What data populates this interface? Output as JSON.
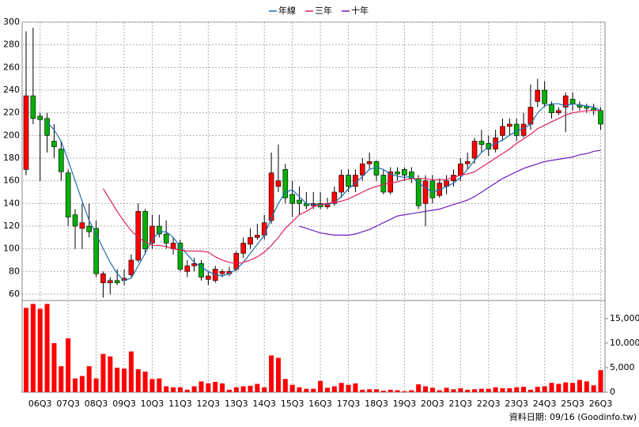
{
  "chart_data": {
    "type": "candlestick",
    "categories": [
      null,
      null,
      "06Q3",
      null,
      null,
      null,
      "07Q3",
      null,
      null,
      null,
      "08Q3",
      null,
      null,
      null,
      "09Q3",
      null,
      null,
      null,
      "10Q3",
      null,
      null,
      null,
      "11Q3",
      null,
      null,
      null,
      "12Q3",
      null,
      null,
      null,
      "13Q3",
      null,
      null,
      null,
      "14Q3",
      null,
      null,
      null,
      "15Q3",
      null,
      null,
      null,
      "16Q3",
      null,
      null,
      null,
      "17Q3",
      null,
      null,
      null,
      "18Q3",
      null,
      null,
      null,
      "19Q3",
      null,
      null,
      null,
      "20Q3",
      null,
      null,
      null,
      "21Q3",
      null,
      null,
      null,
      "22Q3",
      null,
      null,
      null,
      "23Q3",
      null,
      null,
      null,
      "24Q3",
      null,
      null,
      null,
      "25Q3",
      null,
      null,
      null,
      "26Q3"
    ],
    "open": [
      170,
      235,
      217,
      215,
      195,
      188,
      167,
      130,
      118,
      120,
      118,
      70,
      70,
      72,
      72,
      77,
      90,
      133,
      105,
      120,
      113,
      100,
      105,
      80,
      85,
      87,
      73,
      72,
      78,
      78,
      82,
      96,
      104,
      110,
      112,
      125,
      155,
      170,
      148,
      143,
      140,
      138,
      140,
      137,
      140,
      150,
      165,
      155,
      165,
      175,
      177,
      165,
      150,
      168,
      170,
      168,
      162,
      140,
      160,
      147,
      155,
      160,
      165,
      175,
      180,
      195,
      193,
      188,
      200,
      208,
      210,
      200,
      210,
      230,
      240,
      227,
      220,
      225,
      232,
      227,
      226,
      224,
      222
    ],
    "high": [
      292,
      295,
      220,
      220,
      210,
      195,
      170,
      135,
      140,
      140,
      125,
      80,
      75,
      82,
      82,
      95,
      140,
      135,
      130,
      130,
      125,
      110,
      108,
      90,
      92,
      90,
      80,
      85,
      82,
      84,
      98,
      110,
      118,
      122,
      130,
      185,
      192,
      175,
      160,
      155,
      150,
      150,
      150,
      145,
      155,
      170,
      170,
      170,
      180,
      185,
      178,
      170,
      172,
      172,
      172,
      172,
      165,
      165,
      165,
      162,
      165,
      170,
      180,
      185,
      198,
      205,
      200,
      205,
      215,
      215,
      215,
      220,
      245,
      250,
      248,
      230,
      225,
      238,
      238,
      230,
      228,
      228,
      225
    ],
    "low": [
      165,
      210,
      160,
      185,
      180,
      160,
      120,
      100,
      100,
      110,
      75,
      57,
      60,
      68,
      68,
      75,
      88,
      95,
      100,
      110,
      100,
      95,
      80,
      75,
      80,
      72,
      68,
      70,
      75,
      76,
      80,
      92,
      100,
      108,
      108,
      122,
      150,
      140,
      128,
      130,
      135,
      135,
      135,
      135,
      138,
      145,
      150,
      150,
      160,
      170,
      160,
      148,
      148,
      160,
      160,
      158,
      135,
      120,
      140,
      145,
      148,
      155,
      160,
      170,
      175,
      185,
      182,
      185,
      195,
      200,
      195,
      198,
      205,
      225,
      225,
      215,
      218,
      203,
      222,
      222,
      220,
      218,
      205
    ],
    "close": [
      235,
      215,
      214,
      200,
      190,
      168,
      128,
      120,
      123,
      115,
      78,
      78,
      72,
      70,
      74,
      90,
      133,
      100,
      120,
      113,
      105,
      105,
      82,
      85,
      87,
      75,
      76,
      82,
      80,
      80,
      96,
      105,
      110,
      112,
      123,
      167,
      160,
      145,
      140,
      140,
      138,
      140,
      137,
      140,
      150,
      165,
      155,
      165,
      175,
      177,
      165,
      150,
      168,
      166,
      165,
      162,
      138,
      160,
      145,
      158,
      160,
      165,
      175,
      177,
      195,
      192,
      188,
      198,
      208,
      210,
      200,
      210,
      225,
      240,
      228,
      220,
      222,
      235,
      228,
      225,
      224,
      222,
      210
    ],
    "up_color": "#ff0000",
    "down_color": "#00b000",
    "ylim": [
      54.4,
      300
    ],
    "yticks": [
      60,
      80,
      100,
      120,
      140,
      160,
      180,
      200,
      220,
      240,
      260,
      280,
      300
    ],
    "grid": true,
    "series": [
      {
        "name": "年線",
        "color": "#1f6fb5",
        "values": [
          null,
          null,
          null,
          212,
          205,
          195,
          178,
          160,
          142,
          125,
          113,
          100,
          88,
          78,
          72,
          74,
          85,
          96,
          108,
          115,
          115,
          110,
          102,
          95,
          88,
          84,
          80,
          77,
          76,
          78,
          82,
          88,
          96,
          104,
          112,
          127,
          140,
          150,
          152,
          146,
          140,
          139,
          139,
          139,
          141,
          146,
          153,
          158,
          164,
          170,
          172,
          170,
          166,
          164,
          163,
          164,
          158,
          154,
          150,
          152,
          155,
          158,
          163,
          170,
          178,
          185,
          190,
          193,
          196,
          200,
          204,
          206,
          210,
          220,
          226,
          228,
          228,
          226,
          228,
          227,
          226,
          225,
          222
        ]
      },
      {
        "name": "三年",
        "color": "#e0205a",
        "values": [
          null,
          null,
          null,
          null,
          null,
          null,
          null,
          null,
          null,
          null,
          null,
          153,
          143,
          133,
          124,
          116,
          110,
          106,
          103,
          103,
          102,
          100,
          99,
          98,
          98,
          98,
          97,
          93,
          90,
          88,
          87,
          88,
          90,
          93,
          97,
          103,
          110,
          118,
          124,
          130,
          133,
          137,
          139,
          140,
          141,
          142,
          144,
          147,
          150,
          153,
          155,
          157,
          158,
          159,
          161,
          162,
          162,
          162,
          161,
          161,
          161,
          163,
          165,
          166,
          168,
          172,
          176,
          180,
          184,
          188,
          193,
          197,
          201,
          206,
          209,
          212,
          215,
          218,
          220,
          221,
          222,
          222,
          222
        ]
      },
      {
        "name": "十年",
        "color": "#6a1fc0",
        "values": [
          null,
          null,
          null,
          null,
          null,
          null,
          null,
          null,
          null,
          null,
          null,
          null,
          null,
          null,
          null,
          null,
          null,
          null,
          null,
          null,
          null,
          null,
          null,
          null,
          null,
          null,
          null,
          null,
          null,
          null,
          null,
          null,
          null,
          null,
          null,
          null,
          null,
          null,
          null,
          120,
          118,
          116,
          114,
          113,
          112,
          112,
          112,
          113,
          115,
          117,
          120,
          123,
          126,
          129,
          130,
          131,
          132,
          133,
          134,
          135,
          137,
          139,
          141,
          143,
          146,
          150,
          154,
          158,
          162,
          165,
          168,
          171,
          173,
          175,
          177,
          178,
          179,
          180,
          181,
          183,
          184,
          186,
          187
        ]
      }
    ],
    "volume": {
      "color": "#ff0000",
      "values": [
        17200,
        18000,
        17000,
        18000,
        10000,
        5300,
        11000,
        2800,
        3300,
        5300,
        2800,
        7800,
        7300,
        5000,
        4800,
        8300,
        4700,
        4200,
        2700,
        2800,
        1200,
        1000,
        1000,
        500,
        1200,
        2200,
        1800,
        2100,
        1800,
        500,
        1000,
        1200,
        1300,
        1700,
        1000,
        7500,
        7000,
        2700,
        1500,
        1000,
        700,
        700,
        2300,
        900,
        1200,
        1900,
        1500,
        1800,
        500,
        600,
        600,
        300,
        500,
        400,
        200,
        400,
        1600,
        1200,
        900,
        400,
        900,
        600,
        800,
        500,
        600,
        700,
        700,
        1000,
        800,
        800,
        1000,
        1100,
        500,
        1100,
        1200,
        1900,
        1700,
        2000,
        1900,
        2500,
        2200,
        1400,
        4500
      ],
      "ylim": [
        0,
        18700
      ],
      "yticks": [
        0,
        {
          "value": 5000,
          "label": "5,000"
        },
        {
          "value": 10000,
          "label": "10,000"
        },
        {
          "value": 15000,
          "label": "15,000"
        }
      ]
    },
    "source": "資料日期: 09/16  (Goodinfo.tw)"
  }
}
